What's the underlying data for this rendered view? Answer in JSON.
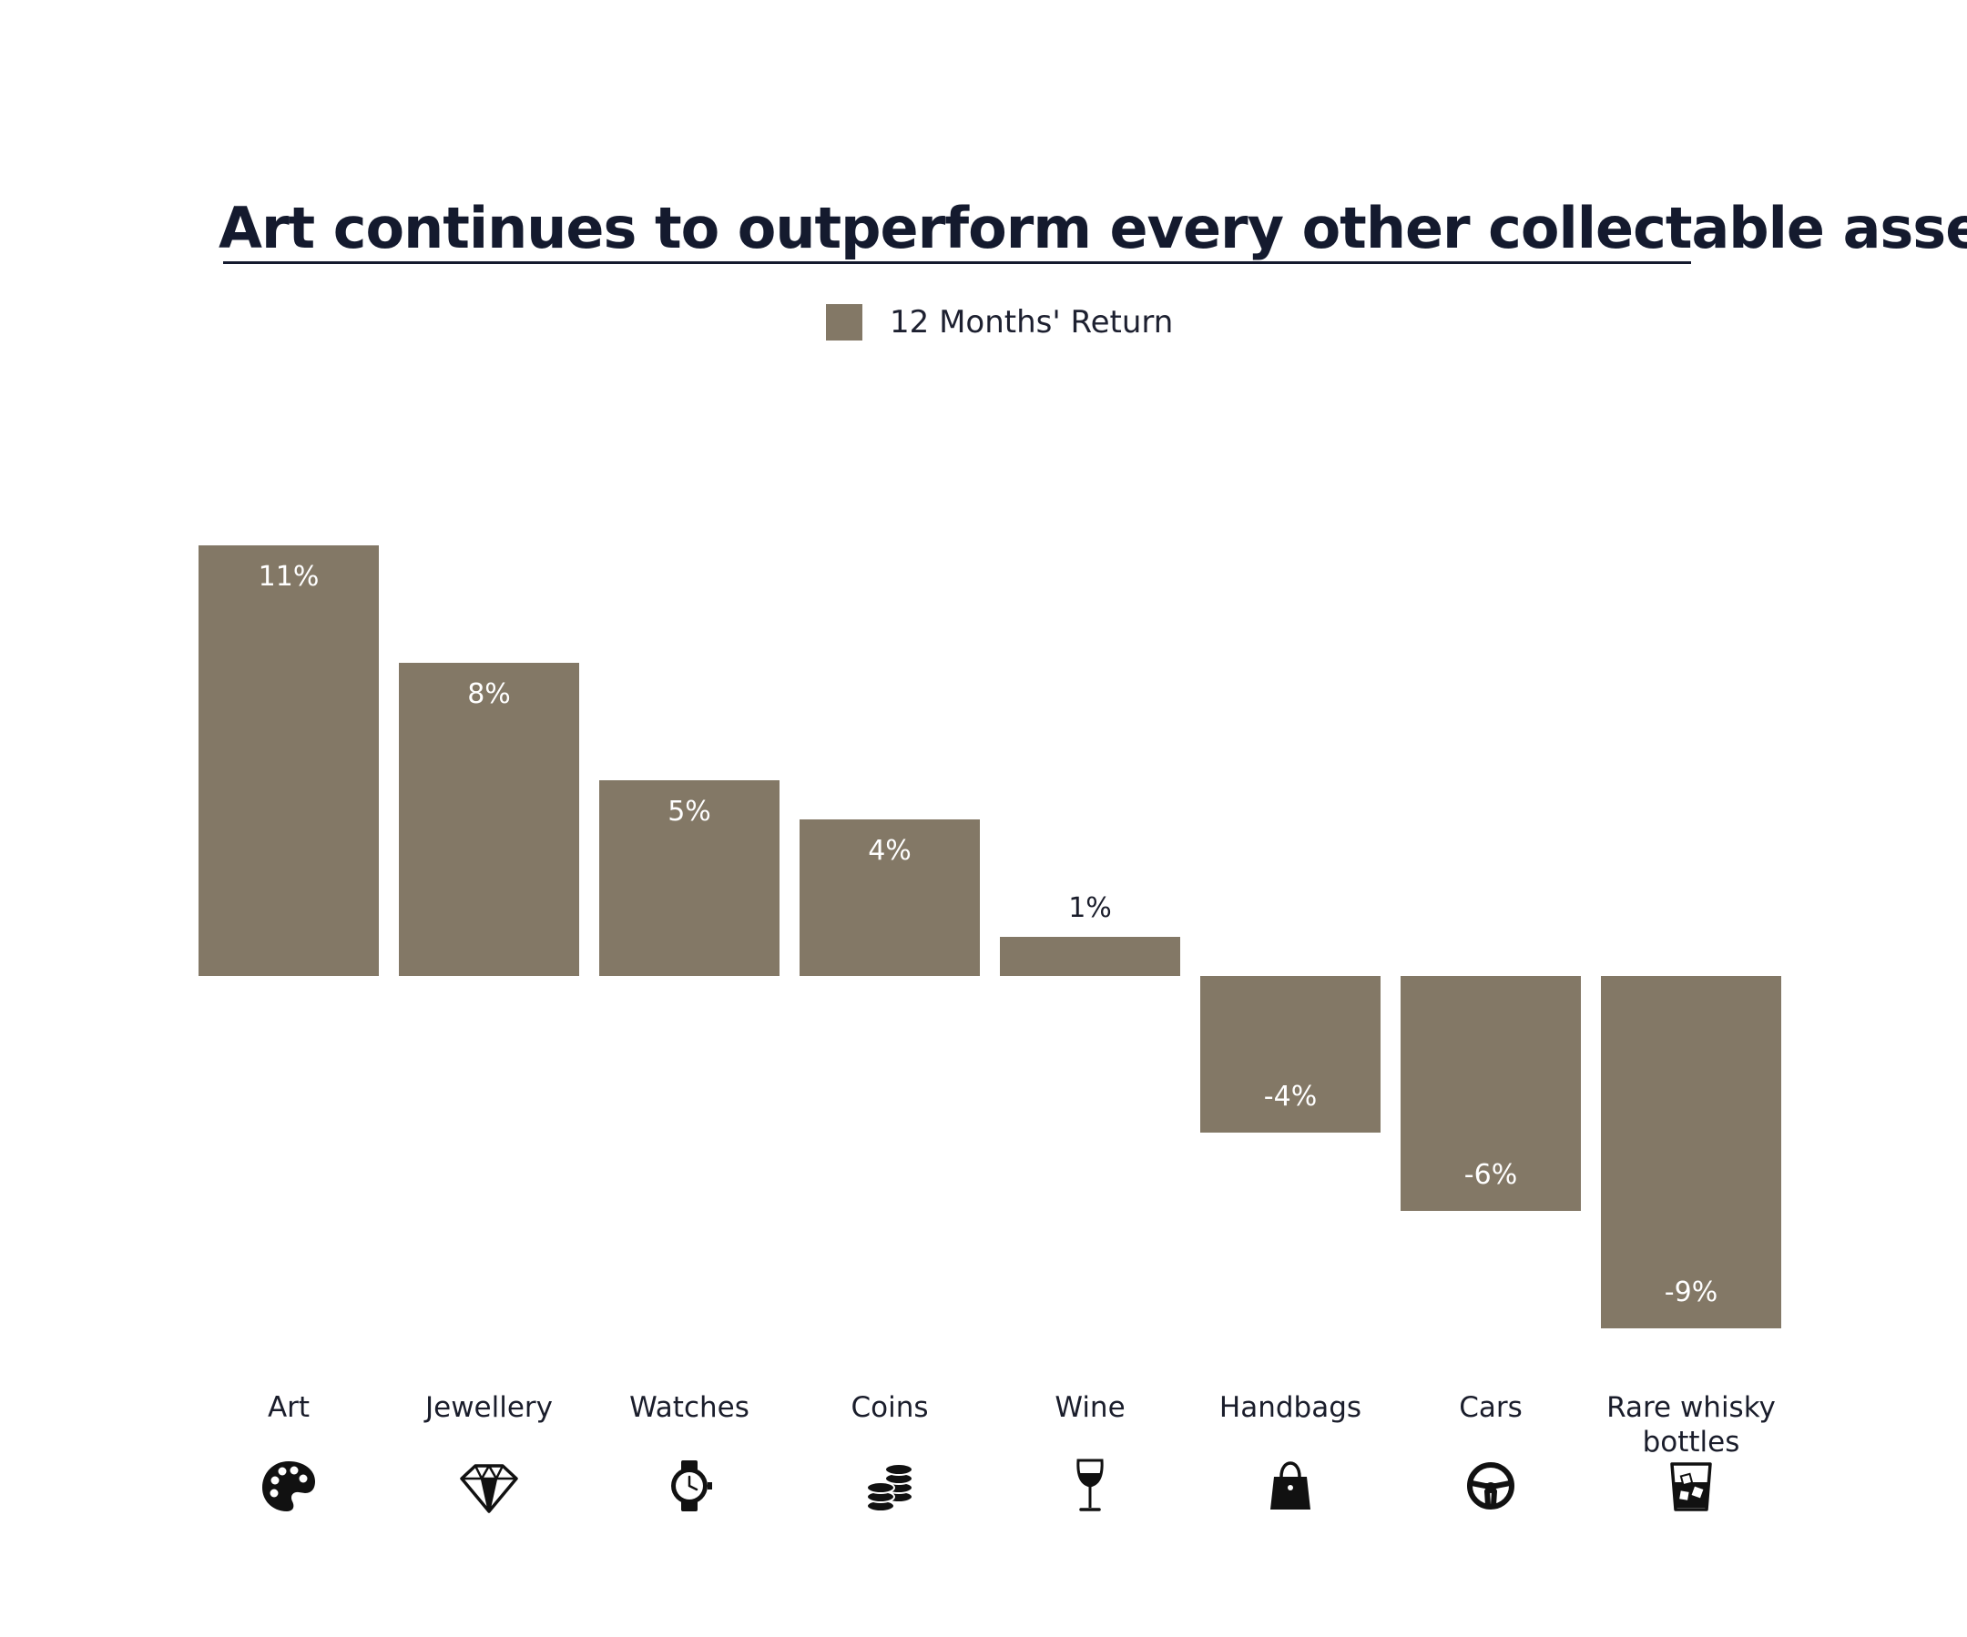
{
  "chart_data": {
    "type": "bar",
    "title": "Art continues to outperform every other collectable asset",
    "legend": {
      "entries": [
        "12 Months' Return"
      ],
      "position": "top-center"
    },
    "categories": [
      "Art",
      "Jewellery",
      "Watches",
      "Coins",
      "Wine",
      "Handbags",
      "Cars",
      "Rare whisky bottles"
    ],
    "category_label_lines": [
      [
        "Art"
      ],
      [
        "Jewellery"
      ],
      [
        "Watches"
      ],
      [
        "Coins"
      ],
      [
        "Wine"
      ],
      [
        "Handbags"
      ],
      [
        "Cars"
      ],
      [
        "Rare whisky",
        "bottles"
      ]
    ],
    "category_icons": [
      "palette-icon",
      "diamond-icon",
      "watch-icon",
      "coins-icon",
      "wine-glass-icon",
      "handbag-icon",
      "steering-wheel-icon",
      "whisky-glass-icon"
    ],
    "series": [
      {
        "name": "12 Months' Return",
        "values": [
          11,
          8,
          5,
          4,
          1,
          -4,
          -6,
          -9
        ],
        "labels": [
          "11%",
          "8%",
          "5%",
          "4%",
          "1%",
          "-4%",
          "-6%",
          "-9%"
        ],
        "color": "#837866"
      }
    ],
    "unit": "%",
    "ylim": [
      -9,
      11
    ],
    "grid": false,
    "axes_visible": false
  },
  "colors": {
    "bar": "#837866",
    "title": "#141a2e",
    "label_inside": "#ffffff",
    "label_outside": "#1a1d2b",
    "icon": "#111111"
  }
}
